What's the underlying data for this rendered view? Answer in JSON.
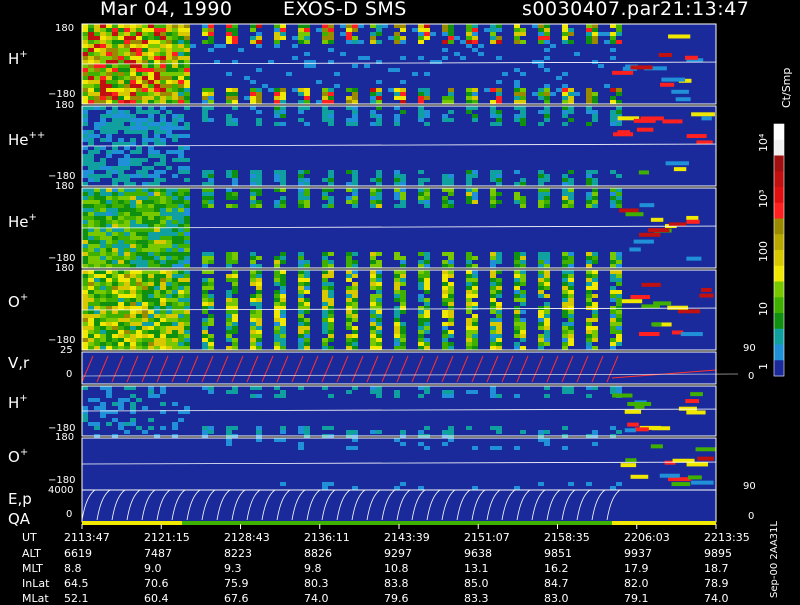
{
  "header": {
    "date": "Mar 04, 1990",
    "instrument": "EXOS-D SMS",
    "file": "s0030407.par",
    "time": "21:13:47"
  },
  "panels": [
    {
      "label": "H",
      "charge": "+",
      "ymax": "180",
      "ymin": "−180"
    },
    {
      "label": "He",
      "charge": "++",
      "ymax": "180",
      "ymin": "−180"
    },
    {
      "label": "He",
      "charge": "+",
      "ymax": "180",
      "ymin": "−180"
    },
    {
      "label": "O",
      "charge": "+",
      "ymax": "180",
      "ymin": "−180"
    },
    {
      "label": "V,r",
      "charge": "",
      "ymax": "25",
      "ymin": "0",
      "rmax": "90",
      "rmin": "0"
    },
    {
      "label": "H",
      "charge": "+",
      "ymax": "180",
      "ymin": "−180"
    },
    {
      "label": "O",
      "charge": "+",
      "ymax": "180",
      "ymin": "−180"
    },
    {
      "label": "E,p",
      "label2": "QA",
      "ymax": "4000",
      "ymin": "0",
      "rmax": "90",
      "rmin": "0"
    }
  ],
  "colorbar": {
    "units": "Ct/Smp",
    "ticks": [
      "10⁴",
      "10³",
      "100",
      "10",
      "1"
    ],
    "colors": [
      "#ffffff",
      "#f0f0f0",
      "#a01010",
      "#c01010",
      "#e01010",
      "#ff2020",
      "#9a8a00",
      "#b8a800",
      "#d8c800",
      "#f0e800",
      "#78c800",
      "#40b000",
      "#109010",
      "#10a0a0",
      "#2090d8",
      "#1a2a9a"
    ]
  },
  "footer": {
    "rows": [
      {
        "name": "UT",
        "values": [
          "2113:47",
          "2121:15",
          "2128:43",
          "2136:11",
          "2143:39",
          "2151:07",
          "2158:35",
          "2206:03",
          "2213:35"
        ]
      },
      {
        "name": "ALT",
        "values": [
          "6619",
          "7487",
          "8223",
          "8826",
          "9297",
          "9638",
          "9851",
          "9937",
          "9895"
        ]
      },
      {
        "name": "MLT",
        "values": [
          "8.8",
          "9.0",
          "9.3",
          "9.8",
          "10.8",
          "13.1",
          "16.2",
          "17.9",
          "18.7"
        ]
      },
      {
        "name": "InLat",
        "values": [
          "64.5",
          "70.6",
          "75.9",
          "80.3",
          "83.8",
          "85.0",
          "84.7",
          "82.0",
          "78.9"
        ]
      },
      {
        "name": "MLat",
        "values": [
          "52.1",
          "60.4",
          "67.6",
          "74.0",
          "79.6",
          "83.3",
          "83.0",
          "79.1",
          "74.0"
        ]
      }
    ],
    "stamp": "Sep-00 2AA31L"
  },
  "chart_data": {
    "type": "heatmap",
    "title": "Mar 04, 1990   EXOS-D SMS   s0030407.par 21:13:47",
    "x_ticks": [
      "2113:47",
      "2121:15",
      "2128:43",
      "2136:11",
      "2143:39",
      "2151:07",
      "2158:35",
      "2206:03",
      "2213:35"
    ],
    "panels": [
      {
        "label": "H+",
        "ylim": [
          -180,
          180
        ]
      },
      {
        "label": "He++",
        "ylim": [
          -180,
          180
        ]
      },
      {
        "label": "He+",
        "ylim": [
          -180,
          180
        ]
      },
      {
        "label": "O+",
        "ylim": [
          -180,
          180
        ]
      },
      {
        "label": "V,r",
        "ylim": [
          0,
          25
        ],
        "ylim_right": [
          0,
          90
        ]
      },
      {
        "label": "H+",
        "ylim": [
          -180,
          180
        ]
      },
      {
        "label": "O+",
        "ylim": [
          -180,
          180
        ]
      },
      {
        "label": "E,p / QA",
        "ylim": [
          0,
          4000
        ],
        "ylim_right": [
          0,
          90
        ]
      }
    ],
    "color_scale": {
      "units": "Ct/Smp",
      "log": true,
      "range": [
        1,
        10000
      ]
    }
  }
}
